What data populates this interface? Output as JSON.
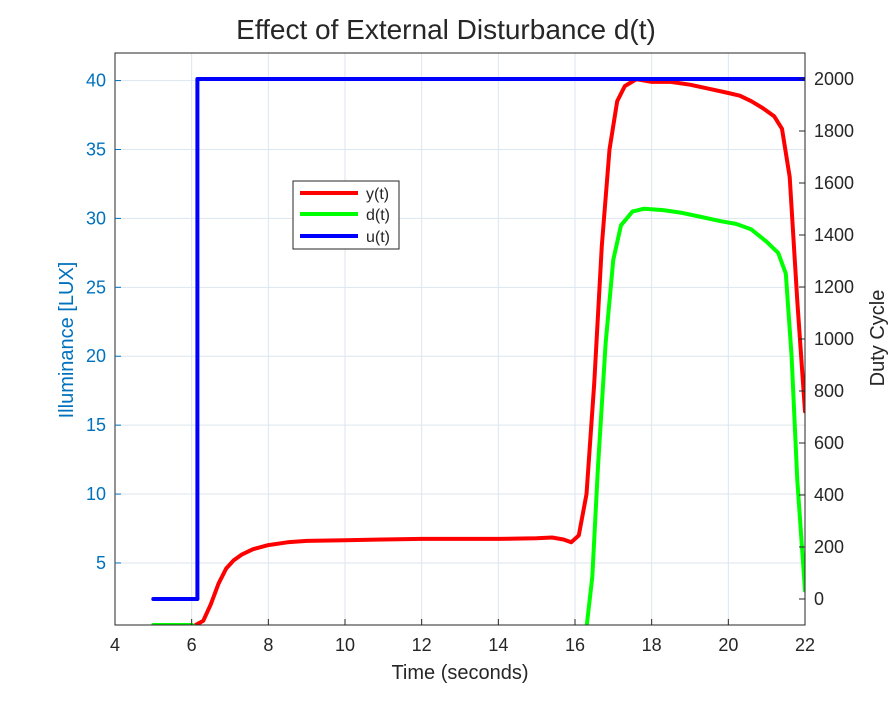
{
  "chart_data": {
    "type": "line",
    "title": "Effect of External Disturbance d(t)",
    "xlabel": "Time (seconds)",
    "ylabel_left": "Illuminance [LUX]",
    "ylabel_right": "Duty Cycle",
    "xlim": [
      4,
      22
    ],
    "ylim_left": [
      0.5,
      42
    ],
    "ylim_right": [
      -100,
      2100
    ],
    "xticks": [
      "4",
      "6",
      "8",
      "10",
      "12",
      "14",
      "16",
      "18",
      "20",
      "22"
    ],
    "yticks_left": [
      "5",
      "10",
      "15",
      "20",
      "25",
      "30",
      "35",
      "40"
    ],
    "yticks_right": [
      "0",
      "200",
      "400",
      "600",
      "800",
      "1000",
      "1200",
      "1400",
      "1600",
      "1800",
      "2000"
    ],
    "grid": true,
    "legend_position": "upper-left-inside",
    "colors": {
      "left_axis": "#0072BD",
      "y": "#FF0000",
      "d": "#00FF00",
      "u": "#0000FF",
      "grid": "#DCE6EE"
    },
    "series": [
      {
        "name": "y(t)",
        "axis": "left",
        "color": "#FF0000",
        "x": [
          6.1,
          6.3,
          6.5,
          6.7,
          6.9,
          7.1,
          7.3,
          7.6,
          8.0,
          8.5,
          9.0,
          10.0,
          11.0,
          12.0,
          13.0,
          14.0,
          15.0,
          15.4,
          15.7,
          15.9,
          16.1,
          16.3,
          16.5,
          16.7,
          16.9,
          17.1,
          17.3,
          17.6,
          18.0,
          18.5,
          19.0,
          19.5,
          20.0,
          20.3,
          20.6,
          20.9,
          21.2,
          21.4,
          21.6,
          21.8,
          22.0
        ],
        "y": [
          0.5,
          0.8,
          2.0,
          3.5,
          4.6,
          5.2,
          5.6,
          6.0,
          6.3,
          6.5,
          6.6,
          6.65,
          6.7,
          6.75,
          6.75,
          6.75,
          6.8,
          6.85,
          6.7,
          6.5,
          7.0,
          10.0,
          18.0,
          28.0,
          35.0,
          38.5,
          39.6,
          40.1,
          39.9,
          39.9,
          39.7,
          39.4,
          39.1,
          38.9,
          38.5,
          38.0,
          37.4,
          36.5,
          33.0,
          24.0,
          16.0
        ]
      },
      {
        "name": "d(t)",
        "axis": "left",
        "color": "#00FF00",
        "x": [
          5.0,
          6.0,
          6.2,
          16.3,
          16.45,
          16.6,
          16.8,
          17.0,
          17.2,
          17.5,
          17.8,
          18.3,
          18.8,
          19.3,
          19.8,
          20.2,
          20.6,
          21.0,
          21.3,
          21.5,
          21.65,
          21.8,
          22.0
        ],
        "y": [
          0.5,
          0.5,
          0.3,
          0.3,
          4.0,
          12.0,
          21.0,
          27.0,
          29.5,
          30.5,
          30.7,
          30.6,
          30.4,
          30.1,
          29.8,
          29.6,
          29.2,
          28.3,
          27.5,
          26.0,
          20.0,
          11.0,
          3.0
        ]
      },
      {
        "name": "u(t)",
        "axis": "right",
        "color": "#0000FF",
        "x": [
          5.0,
          6.15,
          6.15,
          22.0
        ],
        "y": [
          0,
          0,
          2000,
          2000
        ]
      }
    ]
  }
}
